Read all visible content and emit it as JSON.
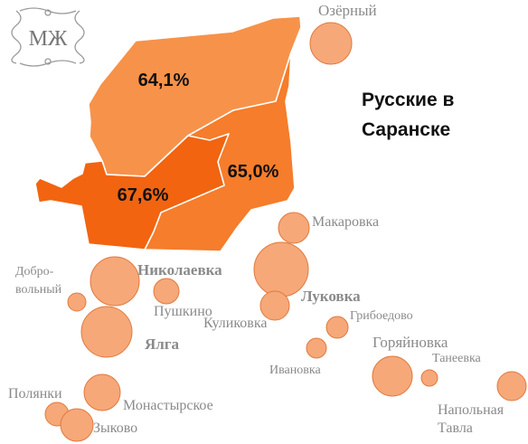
{
  "map": {
    "title_line1": "Русские в",
    "title_line2": "Саранске",
    "logo_text": "МЖ",
    "colors": {
      "district_light": "#f7924a",
      "district_mid": "#f57d2b",
      "district_dark": "#f26410",
      "circle_fill": "#f6a878",
      "label_grey": "#8a8a8a"
    },
    "districts": [
      {
        "name": "north-district",
        "value": "64,1%"
      },
      {
        "name": "east-district",
        "value": "65,0%"
      },
      {
        "name": "west-district",
        "value": "67,6%"
      }
    ],
    "settlements": {
      "ozerny": "Озёрный",
      "makarovka": "Макаровка",
      "dobrovolny_1": "Добро-",
      "dobrovolny_2": "вольный",
      "nikolaevka": "Николаевка",
      "pushkino": "Пушкино",
      "lukovka": "Луковка",
      "kulikovka": "Куликовка",
      "griboedovo": "Грибоедово",
      "yalga": "Ялга",
      "goryainovka": "Горяйновка",
      "ivanovka": "Ивановка",
      "taneevka": "Танеевка",
      "polyanki": "Полянки",
      "monastyrskoe": "Монастырское",
      "napolnaya_1": "Напольная",
      "napolnaya_2": "Тавла",
      "zykovo": "Зыково"
    }
  }
}
